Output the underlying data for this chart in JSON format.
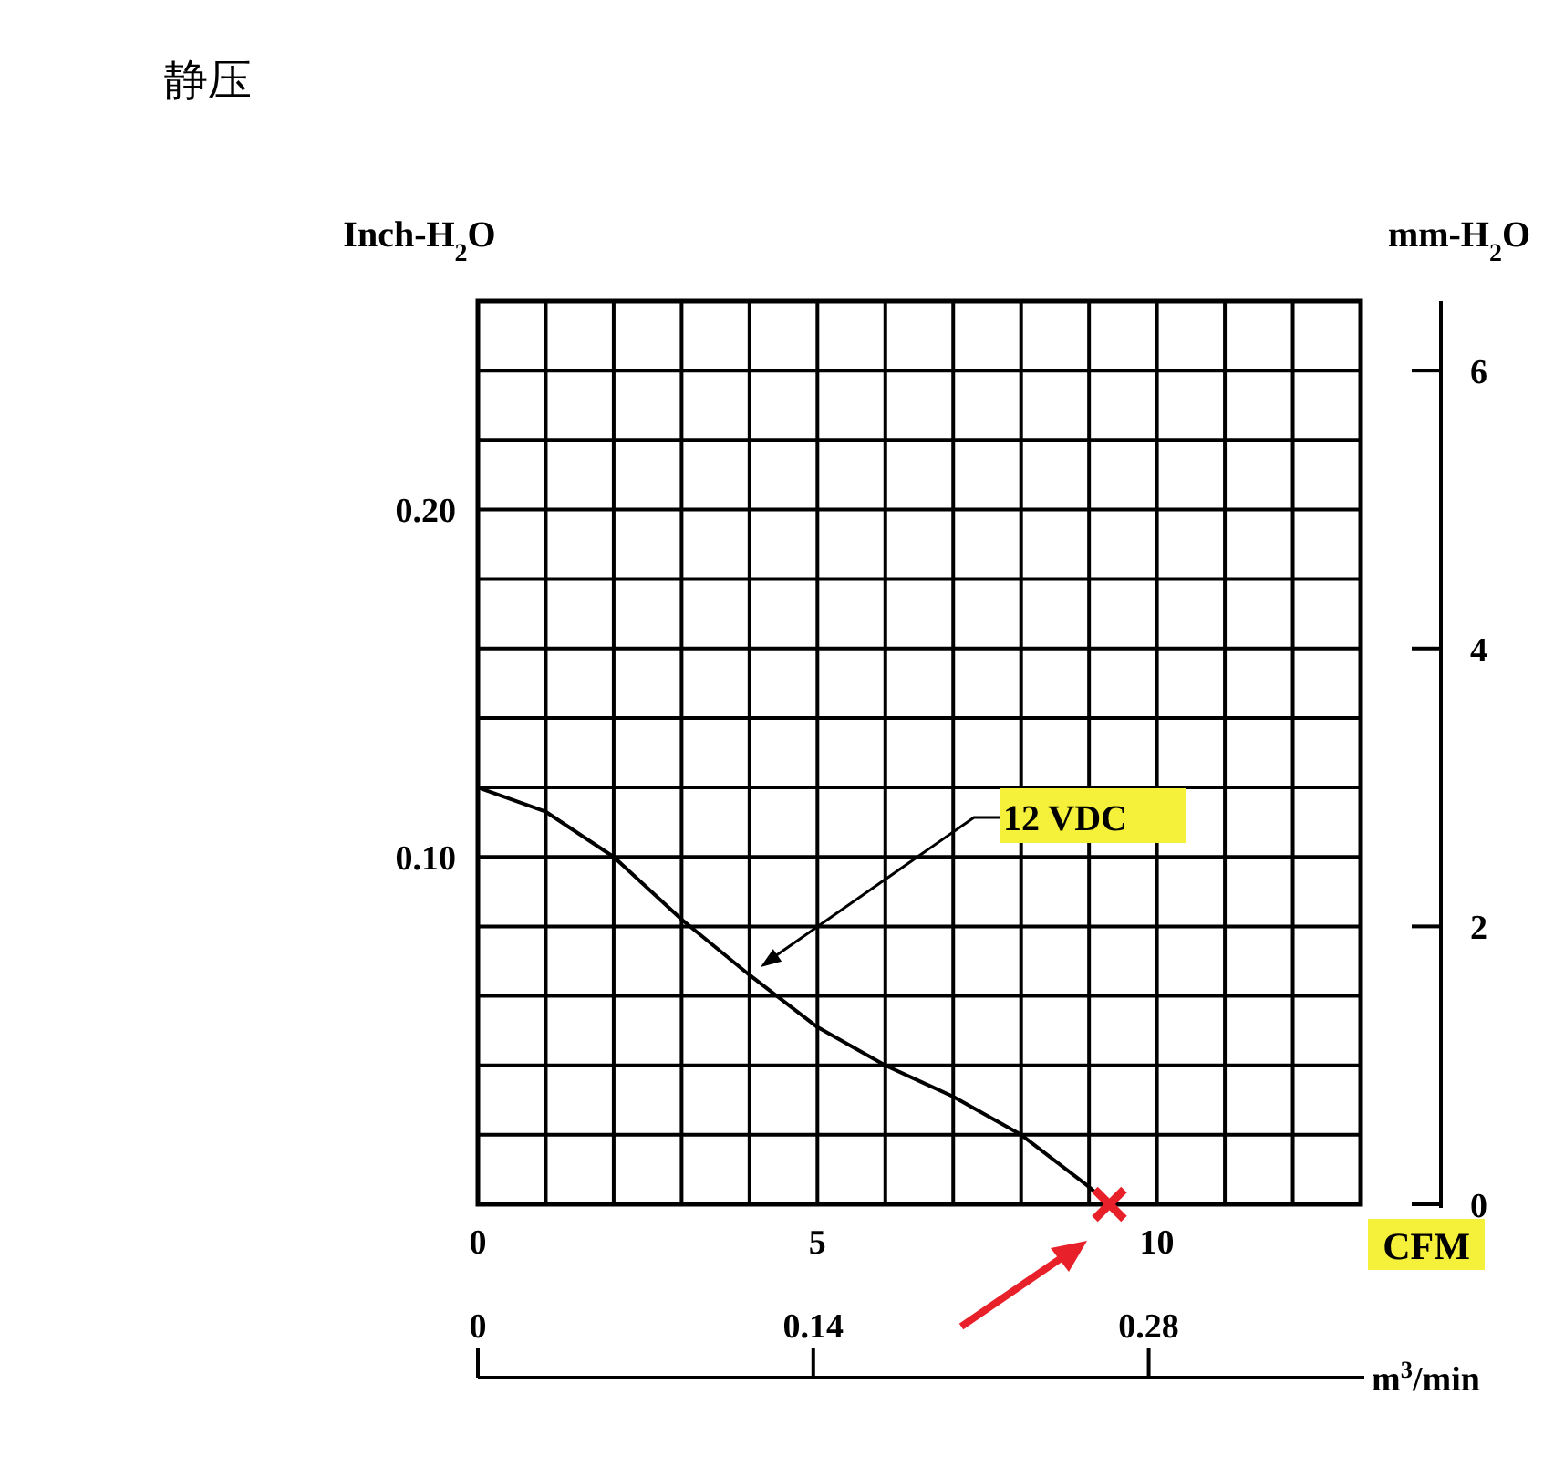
{
  "chart_data": {
    "type": "line",
    "title": "静压",
    "xlabel": "CFM",
    "ylabel": "Inch-H$_{2}$O",
    "y2label": "mm-H$_{2}$O",
    "x2label": "m$^{3}$/min",
    "xlim": [
      0,
      13
    ],
    "ylim": [
      0,
      0.26
    ],
    "y2lim": [
      0,
      6.5
    ],
    "x2lim": [
      0,
      0.37
    ],
    "xticks": [
      0,
      {
        "value": 1,
        "label": null
      },
      {
        "value": 2,
        "label": null
      },
      {
        "value": 3,
        "label": null
      },
      {
        "value": 4,
        "label": null
      },
      5,
      {
        "value": 6,
        "label": null
      },
      {
        "value": 7,
        "label": null
      },
      {
        "value": 8,
        "label": null
      },
      {
        "value": 9,
        "label": null
      },
      10,
      {
        "value": 11,
        "label": null
      },
      {
        "value": 12,
        "label": null
      },
      {
        "value": 13,
        "label": null
      }
    ],
    "yticks": [
      {
        "value": 0.1,
        "label": "0.10"
      },
      {
        "value": 0.2,
        "label": "0.20"
      }
    ],
    "y2ticks": [
      0,
      2,
      4,
      6
    ],
    "x2ticks": [
      0,
      0.14,
      0.28
    ],
    "grid": true,
    "series": [
      {
        "color": "#000000",
        "marker": "none",
        "x": [
          0,
          1,
          2,
          3,
          4,
          5,
          6,
          7,
          8,
          9,
          9.3
        ],
        "values": [
          0.12,
          0.113,
          0.1,
          0.082,
          0.066,
          0.051,
          0.04,
          0.031,
          0.02,
          0.005,
          0
        ]
      },
      {
        "type": "scatter",
        "color": "#e8202a",
        "marker": "cross",
        "x": [
          9.3
        ],
        "values": [
          0
        ]
      }
    ],
    "annotations": [
      "12 VDC"
    ]
  }
}
